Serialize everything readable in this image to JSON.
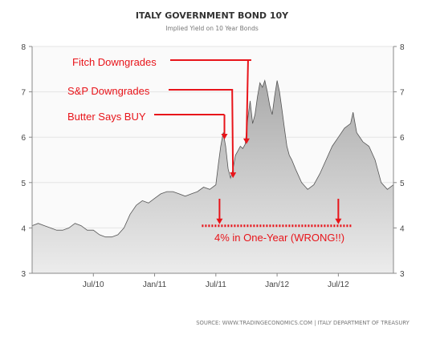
{
  "chart_data": {
    "type": "area",
    "title": "ITALY GOVERNMENT BOND 10Y",
    "subtitle": "Implied Yield on 10 Year Bonds",
    "source": "SOURCE: WWW.TRADINGECONOMICS.COM | ITALY DEPARTMENT OF TREASURY",
    "xlabel": "",
    "ylabel": "",
    "ylim": [
      3,
      8
    ],
    "xlim": [
      2010.0,
      2012.95
    ],
    "yticks": [
      "3",
      "4",
      "5",
      "6",
      "7",
      "8"
    ],
    "xticks": [
      {
        "label": "Jul/10",
        "x": 2010.5
      },
      {
        "label": "Jan/11",
        "x": 2011.0
      },
      {
        "label": "Jul/11",
        "x": 2011.5
      },
      {
        "label": "Jan/12",
        "x": 2012.0
      },
      {
        "label": "Jul/12",
        "x": 2012.5
      }
    ],
    "grid": true,
    "series": [
      {
        "x": [
          2010.0,
          2010.05,
          2010.1,
          2010.15,
          2010.2,
          2010.25,
          2010.3,
          2010.35,
          2010.4,
          2010.45,
          2010.5,
          2010.55,
          2010.6,
          2010.65,
          2010.7,
          2010.75,
          2010.8,
          2010.85,
          2010.9,
          2010.95,
          2011.0,
          2011.05,
          2011.1,
          2011.15,
          2011.2,
          2011.25,
          2011.3,
          2011.35,
          2011.4,
          2011.45,
          2011.5,
          2011.52,
          2011.54,
          2011.56,
          2011.58,
          2011.6,
          2011.62,
          2011.64,
          2011.66,
          2011.68,
          2011.7,
          2011.72,
          2011.74,
          2011.76,
          2011.78,
          2011.8,
          2011.82,
          2011.84,
          2011.86,
          2011.88,
          2011.9,
          2011.92,
          2011.94,
          2011.96,
          2011.98,
          2012.0,
          2012.02,
          2012.04,
          2012.06,
          2012.08,
          2012.1,
          2012.12,
          2012.15,
          2012.2,
          2012.25,
          2012.3,
          2012.35,
          2012.4,
          2012.45,
          2012.5,
          2012.55,
          2012.6,
          2012.62,
          2012.65,
          2012.7,
          2012.75,
          2012.8,
          2012.85,
          2012.9,
          2012.95
        ],
        "y": [
          4.05,
          4.1,
          4.05,
          4.0,
          3.95,
          3.95,
          4.0,
          4.1,
          4.05,
          3.95,
          3.95,
          3.85,
          3.8,
          3.8,
          3.85,
          4.0,
          4.3,
          4.5,
          4.6,
          4.55,
          4.65,
          4.75,
          4.8,
          4.8,
          4.75,
          4.7,
          4.75,
          4.8,
          4.9,
          4.85,
          4.95,
          5.4,
          5.8,
          6.1,
          5.8,
          5.3,
          5.1,
          5.3,
          5.6,
          5.7,
          5.8,
          5.75,
          5.85,
          6.4,
          6.8,
          6.3,
          6.5,
          6.9,
          7.2,
          7.1,
          7.25,
          7.0,
          6.7,
          6.5,
          6.9,
          7.25,
          7.0,
          6.6,
          6.2,
          5.8,
          5.6,
          5.5,
          5.3,
          5.0,
          4.85,
          4.95,
          5.2,
          5.5,
          5.8,
          6.0,
          6.2,
          6.3,
          6.55,
          6.1,
          5.9,
          5.8,
          5.5,
          5.0,
          4.85,
          4.95
        ]
      }
    ],
    "annotations": [
      {
        "text": "Fitch Downgrades",
        "at_x": 2011.75,
        "at_y": 5.85
      },
      {
        "text": "S&P Downgrades",
        "at_x": 2011.64,
        "at_y": 5.1
      },
      {
        "text": "Butter Says BUY",
        "at_x": 2011.57,
        "at_y": 5.95
      },
      {
        "text": "4% in One-Year (WRONG!!)",
        "from_x": 2011.53,
        "to_x": 2012.5,
        "level": 4.1
      }
    ]
  },
  "colors": {
    "annotation": "#e8141a",
    "line": "#555555",
    "area_top": "#aaaaaa",
    "area_bottom": "#ececec",
    "plot_bg": "#fafafa",
    "grid": "#e4e4e4"
  }
}
